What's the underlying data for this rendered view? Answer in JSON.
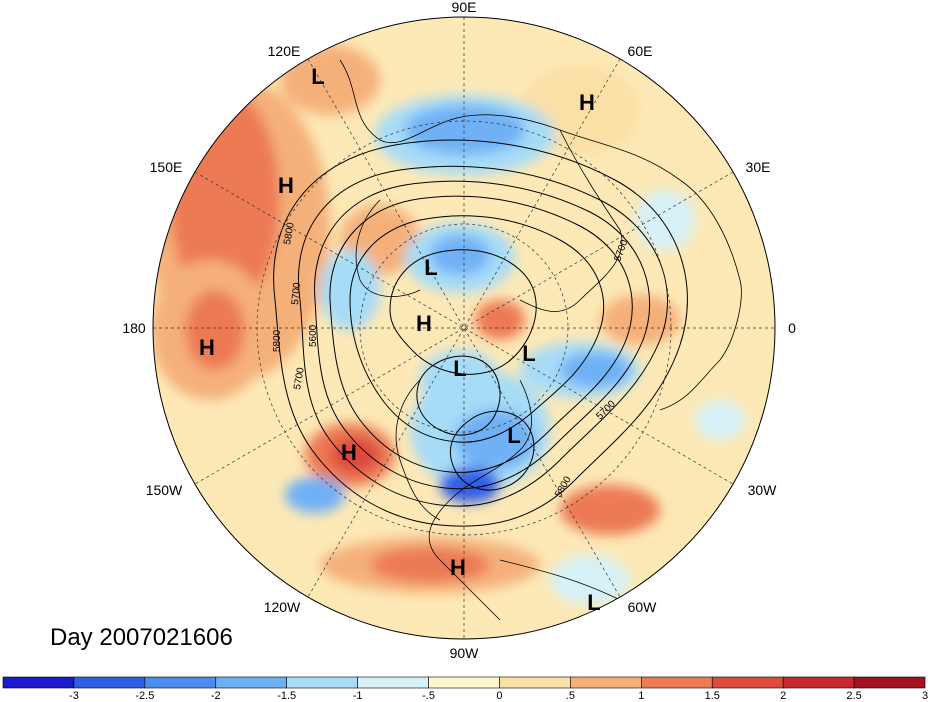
{
  "title": "Day 2007021606",
  "longitude_labels": {
    "lon_90E": "90E",
    "lon_120E": "120E",
    "lon_60E": "60E",
    "lon_150E": "150E",
    "lon_30E": "30E",
    "lon_180": "180",
    "lon_0": "0",
    "lon_150W": "150W",
    "lon_30W": "30W",
    "lon_120W": "120W",
    "lon_60W": "60W",
    "lon_90W": "90W"
  },
  "pressure_centers": [
    {
      "label": "L"
    },
    {
      "label": "H"
    },
    {
      "label": "H"
    },
    {
      "label": "L"
    },
    {
      "label": "H"
    },
    {
      "label": "H"
    },
    {
      "label": "L"
    },
    {
      "label": "L"
    },
    {
      "label": "L"
    },
    {
      "label": "H"
    },
    {
      "label": "H"
    },
    {
      "label": "L"
    }
  ],
  "contour_labels": [
    "5800",
    "5700",
    "5600",
    "5800",
    "5700",
    "5700",
    "5800",
    "5700"
  ],
  "colorbar": {
    "colors": [
      "#1a1acc",
      "#2e5fe6",
      "#4a8cf0",
      "#6fb0f5",
      "#a6dcf7",
      "#d6f1f8",
      "#fff6d0",
      "#fbe0a6",
      "#f5b07a",
      "#ec7a55",
      "#de4a3c",
      "#c8282e",
      "#a3121f"
    ],
    "tick_labels": [
      "-3",
      "-2.5",
      "-2",
      "-1.5",
      "-1",
      "-.5",
      "0",
      ".5",
      "1",
      "1.5",
      "2",
      "2.5",
      "3"
    ]
  }
}
